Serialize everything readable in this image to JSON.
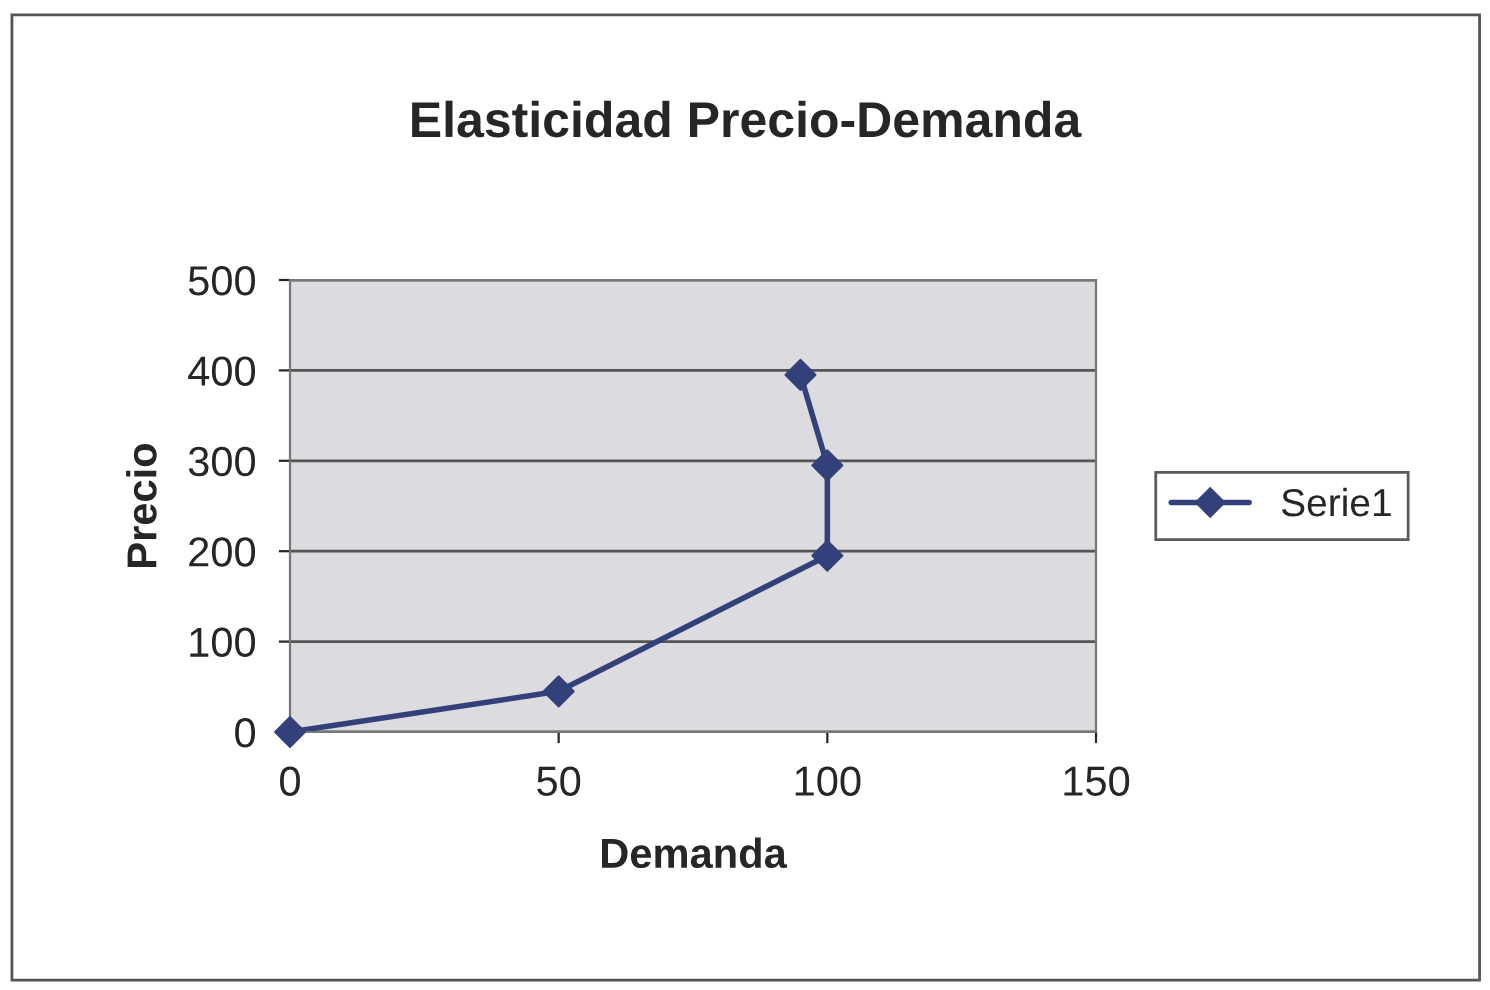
{
  "chart_data": {
    "type": "line",
    "title": "Elasticidad Precio-Demanda",
    "xlabel": "Demanda",
    "ylabel": "Precio",
    "series": [
      {
        "name": "Serie1",
        "color": "#33407a",
        "x": [
          0,
          50,
          100,
          100,
          95
        ],
        "values": [
          0,
          45,
          195,
          295,
          395
        ]
      }
    ],
    "xlim": [
      0,
      150
    ],
    "xticks": [
      0,
      50,
      100,
      150
    ],
    "ylim": [
      0,
      500
    ],
    "yticks": [
      0,
      100,
      200,
      300,
      400,
      500
    ],
    "grid": "y",
    "legend": "right",
    "marker": "diamond",
    "line_style": "solid"
  }
}
